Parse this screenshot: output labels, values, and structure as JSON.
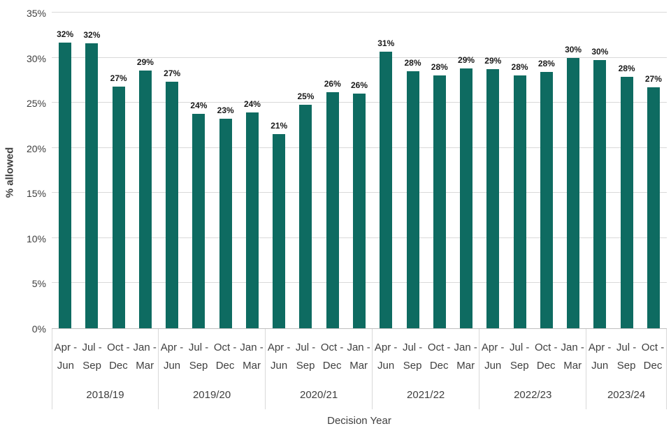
{
  "chart_data": {
    "type": "bar",
    "title": "",
    "xlabel": "Decision Year",
    "ylabel": "% allowed",
    "ylim": [
      0,
      35
    ],
    "grid": true,
    "legend": "none",
    "bar_color": "#0e6b61",
    "yticks": [
      0,
      5,
      10,
      15,
      20,
      25,
      30,
      35
    ],
    "ytick_labels": [
      "0%",
      "5%",
      "10%",
      "15%",
      "20%",
      "25%",
      "30%",
      "35%"
    ],
    "groups": [
      {
        "year": "2018/19",
        "quarters": [
          {
            "line1": "Apr -",
            "line2": "Jun",
            "value": 31.7,
            "data_label": "32%"
          },
          {
            "line1": "Jul -",
            "line2": "Sep",
            "value": 31.6,
            "data_label": "32%"
          },
          {
            "line1": "Oct -",
            "line2": "Dec",
            "value": 26.8,
            "data_label": "27%"
          },
          {
            "line1": "Jan -",
            "line2": "Mar",
            "value": 28.6,
            "data_label": "29%"
          }
        ]
      },
      {
        "year": "2019/20",
        "quarters": [
          {
            "line1": "Apr -",
            "line2": "Jun",
            "value": 27.3,
            "data_label": "27%"
          },
          {
            "line1": "Jul -",
            "line2": "Sep",
            "value": 23.8,
            "data_label": "24%"
          },
          {
            "line1": "Oct -",
            "line2": "Dec",
            "value": 23.2,
            "data_label": "23%"
          },
          {
            "line1": "Jan -",
            "line2": "Mar",
            "value": 23.9,
            "data_label": "24%"
          }
        ]
      },
      {
        "year": "2020/21",
        "quarters": [
          {
            "line1": "Apr -",
            "line2": "Jun",
            "value": 21.5,
            "data_label": "21%"
          },
          {
            "line1": "Jul -",
            "line2": "Sep",
            "value": 24.8,
            "data_label": "25%"
          },
          {
            "line1": "Oct -",
            "line2": "Dec",
            "value": 26.2,
            "data_label": "26%"
          },
          {
            "line1": "Jan -",
            "line2": "Mar",
            "value": 26.0,
            "data_label": "26%"
          }
        ]
      },
      {
        "year": "2021/22",
        "quarters": [
          {
            "line1": "Apr -",
            "line2": "Jun",
            "value": 30.7,
            "data_label": "31%"
          },
          {
            "line1": "Jul -",
            "line2": "Sep",
            "value": 28.5,
            "data_label": "28%"
          },
          {
            "line1": "Oct -",
            "line2": "Dec",
            "value": 28.0,
            "data_label": "28%"
          },
          {
            "line1": "Jan -",
            "line2": "Mar",
            "value": 28.8,
            "data_label": "29%"
          }
        ]
      },
      {
        "year": "2022/23",
        "quarters": [
          {
            "line1": "Apr -",
            "line2": "Jun",
            "value": 28.7,
            "data_label": "29%"
          },
          {
            "line1": "Jul -",
            "line2": "Sep",
            "value": 28.0,
            "data_label": "28%"
          },
          {
            "line1": "Oct -",
            "line2": "Dec",
            "value": 28.4,
            "data_label": "28%"
          },
          {
            "line1": "Jan -",
            "line2": "Mar",
            "value": 30.0,
            "data_label": "30%"
          }
        ]
      },
      {
        "year": "2023/24",
        "quarters": [
          {
            "line1": "Apr -",
            "line2": "Jun",
            "value": 29.7,
            "data_label": "30%"
          },
          {
            "line1": "Jul -",
            "line2": "Sep",
            "value": 27.9,
            "data_label": "28%"
          },
          {
            "line1": "Oct -",
            "line2": "Dec",
            "value": 26.7,
            "data_label": "27%"
          }
        ]
      }
    ]
  }
}
